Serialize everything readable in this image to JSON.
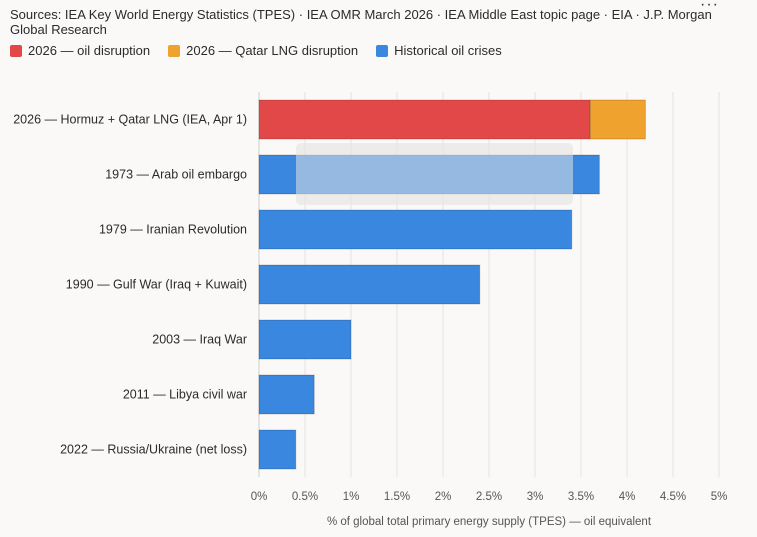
{
  "header": {
    "sources": "Sources: IEA Key World Energy Statistics (TPES) · IEA OMR March 2026 · IEA Middle East topic page · EIA · J.P. Morgan Global Research",
    "more_menu": "···"
  },
  "legend": [
    {
      "label": "2026 — oil disruption",
      "color": "#e24848"
    },
    {
      "label": "2026 — Qatar LNG disruption",
      "color": "#f0a22e"
    },
    {
      "label": "Historical oil crises",
      "color": "#3a87e0"
    }
  ],
  "chart_data": {
    "type": "bar",
    "orientation": "horizontal",
    "stacked": true,
    "categories": [
      "2026 — Hormuz + Qatar LNG (IEA, Apr 1)",
      "1973 — Arab oil embargo",
      "1979 — Iranian Revolution",
      "1990 — Gulf War (Iraq + Kuwait)",
      "2003 — Iraq War",
      "2011 — Libya civil war",
      "2022 — Russia/Ukraine (net loss)"
    ],
    "series": [
      {
        "name": "2026 — oil disruption",
        "color": "#e24848",
        "values": [
          3.6,
          0,
          0,
          0,
          0,
          0,
          0
        ]
      },
      {
        "name": "2026 — Qatar LNG disruption",
        "color": "#f0a22e",
        "values": [
          0.6,
          0,
          0,
          0,
          0,
          0,
          0
        ]
      },
      {
        "name": "Historical oil crises",
        "color": "#3a87e0",
        "values": [
          0,
          3.7,
          3.4,
          2.4,
          1.0,
          0.6,
          0.4
        ]
      }
    ],
    "highlight_category_color": "#b03030",
    "xlim": [
      0,
      5
    ],
    "xticks": [
      0,
      0.5,
      1,
      1.5,
      2,
      2.5,
      3,
      3.5,
      4,
      4.5,
      5
    ],
    "xtick_labels": [
      "0%",
      "0.5%",
      "1%",
      "1.5%",
      "2%",
      "2.5%",
      "3%",
      "3.5%",
      "4%",
      "4.5%",
      "5%"
    ],
    "xlabel": "% of global total primary energy supply (TPES) — oil equivalent",
    "grid": true
  }
}
